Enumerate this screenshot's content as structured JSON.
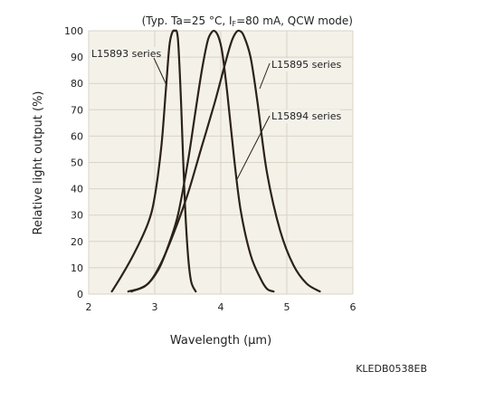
{
  "chart_data": {
    "type": "line",
    "conditions_pre": "(Typ. Ta=25 °C, I",
    "conditions_sub": "F",
    "conditions_post": "=80 mA, QCW mode)",
    "xlabel": "Wavelength (µm)",
    "ylabel": "Relative light output (%)",
    "xlim": [
      2,
      6
    ],
    "ylim": [
      0,
      100
    ],
    "x_ticks": [
      "2",
      "3",
      "4",
      "5",
      "6"
    ],
    "y_ticks": [
      "0",
      "10",
      "20",
      "30",
      "40",
      "50",
      "60",
      "70",
      "80",
      "90",
      "100"
    ],
    "grid": true,
    "colors": {
      "plot_bg": "#f4f1e9",
      "grid": "#d8d4c8",
      "line": "#2b2219"
    },
    "series": [
      {
        "name": "L15893 series",
        "x": [
          2.35,
          2.5,
          2.7,
          2.9,
          3.0,
          3.1,
          3.17,
          3.22,
          3.26,
          3.3,
          3.35,
          3.4,
          3.45,
          3.5,
          3.55,
          3.62
        ],
        "y": [
          1,
          7,
          16,
          27,
          37,
          56,
          78,
          94,
          99,
          100,
          97,
          72,
          38,
          16,
          5,
          1
        ]
      },
      {
        "name": "L15895 series",
        "x": [
          2.6,
          2.85,
          3.05,
          3.2,
          3.35,
          3.5,
          3.62,
          3.72,
          3.8,
          3.85,
          3.9,
          3.96,
          4.02,
          4.1,
          4.2,
          4.3,
          4.45,
          4.6,
          4.7,
          4.8
        ],
        "y": [
          1,
          3,
          9,
          18,
          30,
          50,
          70,
          86,
          96,
          99,
          100,
          98,
          92,
          76,
          52,
          32,
          15,
          6,
          2,
          1
        ]
      },
      {
        "name": "L15894 series",
        "x": [
          2.65,
          2.9,
          3.1,
          3.3,
          3.5,
          3.7,
          3.9,
          4.05,
          4.15,
          4.22,
          4.28,
          4.35,
          4.45,
          4.55,
          4.7,
          4.9,
          5.1,
          5.3,
          5.5
        ],
        "y": [
          1,
          4,
          12,
          24,
          38,
          55,
          72,
          86,
          95,
          99,
          100,
          98,
          90,
          74,
          46,
          24,
          11,
          4,
          1
        ]
      }
    ]
  },
  "figure_code": "KLEDB0538EB"
}
